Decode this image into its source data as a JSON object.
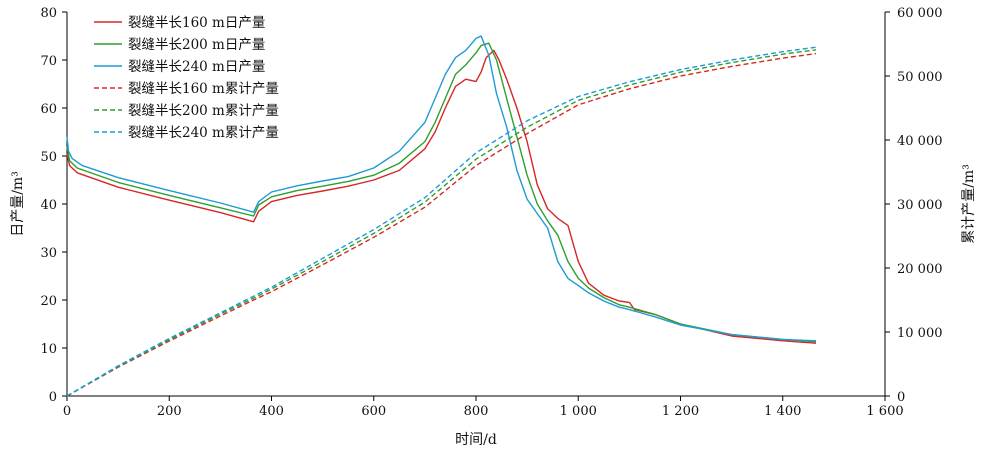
{
  "chart_data": {
    "type": "line",
    "xlabel": "时间/d",
    "ylabel_left": "日产量/m³",
    "ylabel_right": "累计产量/m³",
    "xlim": [
      0,
      1600
    ],
    "ylim_left": [
      0,
      80
    ],
    "ylim_right": [
      0,
      60000
    ],
    "x_ticks": [
      0,
      200,
      400,
      600,
      800,
      1000,
      1200,
      1400,
      1600
    ],
    "x_tick_labels": [
      "0",
      "200",
      "400",
      "600",
      "800",
      "1 000",
      "1 200",
      "1 400",
      "1 600"
    ],
    "y_left_ticks": [
      0,
      10,
      20,
      30,
      40,
      50,
      60,
      70,
      80
    ],
    "y_left_tick_labels": [
      "0",
      "10",
      "20",
      "30",
      "40",
      "50",
      "60",
      "70",
      "80"
    ],
    "y_right_ticks": [
      0,
      10000,
      20000,
      30000,
      40000,
      50000,
      60000
    ],
    "y_right_tick_labels": [
      "0",
      "10 000",
      "20 000",
      "30 000",
      "40 000",
      "50 000",
      "60 000"
    ],
    "grid": false,
    "legend_position": "top-left",
    "series": [
      {
        "name": "裂缝半长160 m日产量",
        "axis": "left",
        "color": "#d62728",
        "dash": "solid",
        "x": [
          0,
          5,
          20,
          100,
          200,
          300,
          365,
          375,
          400,
          450,
          500,
          550,
          600,
          650,
          700,
          720,
          740,
          760,
          780,
          800,
          810,
          820,
          835,
          845,
          860,
          880,
          900,
          920,
          940,
          960,
          980,
          1000,
          1020,
          1050,
          1080,
          1100,
          1110,
          1150,
          1200,
          1300,
          1400,
          1465
        ],
        "values": [
          50.5,
          48.0,
          46.5,
          43.5,
          40.8,
          38.2,
          36.3,
          38.5,
          40.5,
          41.8,
          42.7,
          43.7,
          45.0,
          47.0,
          51.5,
          55.0,
          60.0,
          64.5,
          66.0,
          65.5,
          67.5,
          70.5,
          72.0,
          70.0,
          66.0,
          60.0,
          53.0,
          44.0,
          39.0,
          37.0,
          35.5,
          28.0,
          23.5,
          21.0,
          19.8,
          19.5,
          18.0,
          17.0,
          15.0,
          12.5,
          11.5,
          11.0
        ]
      },
      {
        "name": "裂缝半长200 m日产量",
        "axis": "left",
        "color": "#2ca02c",
        "dash": "solid",
        "x": [
          0,
          5,
          20,
          100,
          200,
          300,
          365,
          375,
          400,
          450,
          500,
          550,
          600,
          650,
          700,
          720,
          740,
          760,
          780,
          800,
          810,
          825,
          840,
          860,
          880,
          900,
          920,
          940,
          960,
          980,
          1000,
          1020,
          1050,
          1080,
          1100,
          1150,
          1200,
          1300,
          1400,
          1465
        ],
        "values": [
          52.0,
          49.0,
          47.5,
          44.5,
          41.8,
          39.2,
          37.5,
          39.8,
          41.5,
          42.8,
          43.7,
          44.7,
          46.0,
          48.5,
          53.0,
          57.0,
          62.0,
          67.0,
          69.0,
          71.5,
          73.0,
          73.5,
          70.0,
          62.0,
          54.0,
          46.0,
          40.0,
          36.5,
          33.5,
          28.0,
          24.5,
          22.5,
          20.5,
          19.0,
          18.5,
          17.0,
          15.0,
          12.8,
          11.8,
          11.3
        ]
      },
      {
        "name": "裂缝半长240 m日产量",
        "axis": "left",
        "color": "#1f9ad6",
        "dash": "solid",
        "x": [
          0,
          3,
          10,
          30,
          100,
          200,
          300,
          365,
          375,
          400,
          450,
          500,
          550,
          600,
          650,
          700,
          720,
          740,
          760,
          780,
          800,
          810,
          825,
          840,
          860,
          880,
          900,
          920,
          940,
          960,
          980,
          1000,
          1020,
          1050,
          1080,
          1100,
          1150,
          1200,
          1300,
          1400,
          1465
        ],
        "values": [
          54.0,
          51.0,
          49.5,
          48.0,
          45.5,
          42.8,
          40.2,
          38.3,
          40.5,
          42.5,
          43.8,
          44.8,
          45.7,
          47.5,
          51.0,
          57.0,
          62.0,
          67.0,
          70.5,
          72.0,
          74.5,
          75.0,
          71.0,
          63.0,
          56.0,
          47.0,
          41.0,
          38.0,
          35.0,
          28.0,
          24.5,
          23.0,
          21.5,
          19.8,
          18.5,
          18.0,
          16.5,
          14.8,
          12.8,
          11.8,
          11.5
        ]
      },
      {
        "name": "裂缝半长160 m累计产量",
        "axis": "right",
        "color": "#d62728",
        "dash": "dashed",
        "x": [
          0,
          100,
          200,
          300,
          365,
          400,
          500,
          600,
          700,
          800,
          900,
          1000,
          1100,
          1200,
          1300,
          1400,
          1465
        ],
        "values": [
          0,
          4500,
          8600,
          12500,
          15000,
          16300,
          20500,
          24800,
          29500,
          36000,
          41000,
          45500,
          48000,
          50000,
          51500,
          52800,
          53500
        ]
      },
      {
        "name": "裂缝半长200 m累计产量",
        "axis": "right",
        "color": "#2ca02c",
        "dash": "dashed",
        "x": [
          0,
          100,
          200,
          300,
          365,
          400,
          500,
          600,
          700,
          800,
          900,
          1000,
          1100,
          1200,
          1300,
          1400,
          1465
        ],
        "values": [
          0,
          4600,
          8800,
          12800,
          15300,
          16700,
          21000,
          25400,
          30300,
          37000,
          42000,
          46200,
          48600,
          50600,
          52100,
          53400,
          54100
        ]
      },
      {
        "name": "裂缝半长240 m累计产量",
        "axis": "right",
        "color": "#1f9ad6",
        "dash": "dashed",
        "x": [
          0,
          100,
          200,
          300,
          365,
          400,
          500,
          600,
          700,
          800,
          900,
          1000,
          1100,
          1200,
          1300,
          1400,
          1465
        ],
        "values": [
          0,
          4700,
          9000,
          13000,
          15600,
          17000,
          21500,
          26000,
          31000,
          38000,
          43000,
          46800,
          49100,
          51000,
          52500,
          53800,
          54500
        ]
      }
    ]
  }
}
